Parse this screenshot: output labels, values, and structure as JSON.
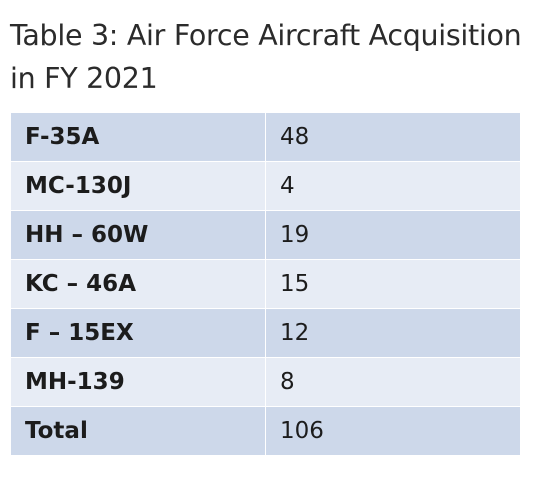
{
  "title": "Table 3: Air Force Aircraft Acquisition in FY 2021",
  "colors": {
    "row_dark": "#cdd8ea",
    "row_light": "#e7ecf5"
  },
  "rows": [
    {
      "aircraft": "F-35A",
      "count": "48"
    },
    {
      "aircraft": "MC-130J",
      "count": "4"
    },
    {
      "aircraft": "HH – 60W",
      "count": "19"
    },
    {
      "aircraft": "KC – 46A",
      "count": "15"
    },
    {
      "aircraft": "F – 15EX",
      "count": "12"
    },
    {
      "aircraft": "MH-139",
      "count": "8"
    },
    {
      "aircraft": "Total",
      "count": "106"
    }
  ]
}
